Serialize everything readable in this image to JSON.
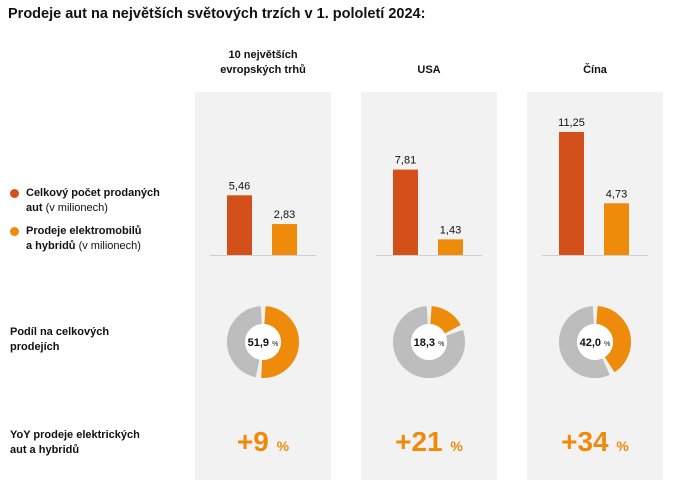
{
  "title": "Prodeje aut na největších světových trzích v 1. pololetí 2024:",
  "colors": {
    "total": "#d4501b",
    "ev": "#ef8b0a",
    "donut_rest": "#bdbdbd",
    "panel": "#f2f2f2"
  },
  "legend": {
    "total": {
      "label": "Celkový počet prodaných aut",
      "unit": "(v milionech)"
    },
    "ev": {
      "label": "Prodeje elektromobilů a hybridů",
      "unit": "(v milionech)"
    }
  },
  "rows": {
    "share": "Podíl na celkových prodejích",
    "yoy": "YoY prodeje elektrických aut a hybridů"
  },
  "markets": [
    {
      "name": "10 největších evropských trhů",
      "name_lines": [
        "10 největších",
        "evropských trhů"
      ],
      "total": 5.46,
      "ev": 2.83,
      "total_label": "5,46",
      "ev_label": "2,83",
      "share": 51.9,
      "share_label": "51,9",
      "yoy_label": "+9"
    },
    {
      "name": "USA",
      "name_lines": [
        "USA"
      ],
      "total": 7.81,
      "ev": 1.43,
      "total_label": "7,81",
      "ev_label": "1,43",
      "share": 18.3,
      "share_label": "18,3",
      "yoy_label": "+21"
    },
    {
      "name": "Čína",
      "name_lines": [
        "Čína"
      ],
      "total": 11.25,
      "ev": 4.73,
      "total_label": "11,25",
      "ev_label": "4,73",
      "share": 42.0,
      "share_label": "42,0",
      "yoy_label": "+34"
    }
  ],
  "units": {
    "percent": "%"
  },
  "chart_data": {
    "type": "bar",
    "title": "Prodeje aut na největších světových trzích v 1. pololetí 2024:",
    "categories": [
      "10 největších evropských trhů",
      "USA",
      "Čína"
    ],
    "series": [
      {
        "name": "Celkový počet prodaných aut (v milionech)",
        "values": [
          5.46,
          7.81,
          11.25
        ]
      },
      {
        "name": "Prodeje elektromobilů a hybridů (v milionech)",
        "values": [
          2.83,
          1.43,
          4.73
        ]
      }
    ],
    "share_percent": [
      51.9,
      18.3,
      42.0
    ],
    "yoy_percent": [
      9,
      21,
      34
    ],
    "ylim": [
      0,
      11.25
    ],
    "xlabel": "",
    "ylabel": ""
  }
}
